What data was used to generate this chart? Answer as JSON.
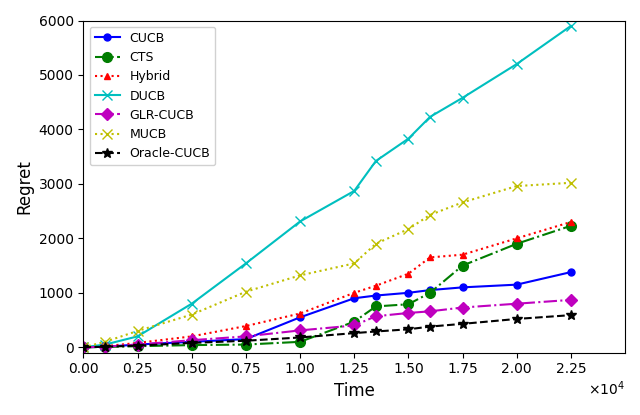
{
  "title": "",
  "xlabel": "Time",
  "ylabel": "Regret",
  "xlim": [
    0,
    25000
  ],
  "ylim": [
    -100,
    6000
  ],
  "xtick_values": [
    0,
    2500,
    5000,
    7500,
    10000,
    12500,
    15000,
    17500,
    20000,
    22500
  ],
  "xtick_labels": [
    "0.00",
    "0.25",
    "0.50",
    "0.75",
    "1.00",
    "1.25",
    "1.50",
    "1.75",
    "2.00",
    "2.25"
  ],
  "ytick_values": [
    0,
    1000,
    2000,
    3000,
    4000,
    5000,
    6000
  ],
  "time_points": [
    0,
    1000,
    2500,
    5000,
    7500,
    10000,
    12500,
    13500,
    15000,
    16000,
    17500,
    20000,
    22500
  ],
  "series": {
    "CUCB": {
      "color": "#0000ff",
      "linestyle": "-",
      "marker": "o",
      "markersize": 5,
      "linewidth": 1.5,
      "values": [
        0,
        10,
        50,
        100,
        150,
        550,
        900,
        950,
        1000,
        1050,
        1100,
        1150,
        1380
      ]
    },
    "CTS": {
      "color": "#007d00",
      "linestyle": "-.",
      "marker": "o",
      "markersize": 7,
      "linewidth": 1.5,
      "values": [
        0,
        5,
        20,
        40,
        50,
        100,
        470,
        750,
        790,
        1000,
        1500,
        1900,
        2230
      ]
    },
    "Hybrid": {
      "color": "#ff0000",
      "linestyle": ":",
      "marker": "^",
      "markersize": 5,
      "linewidth": 1.5,
      "values": [
        0,
        20,
        80,
        200,
        390,
        620,
        1000,
        1130,
        1350,
        1650,
        1700,
        2000,
        2300
      ]
    },
    "DUCB": {
      "color": "#00bfbf",
      "linestyle": "-",
      "marker": "x",
      "markersize": 7,
      "linewidth": 1.5,
      "values": [
        0,
        50,
        200,
        800,
        1540,
        2310,
        2870,
        3420,
        3830,
        4230,
        4580,
        5200,
        5900
      ]
    },
    "GLR-CUCB": {
      "color": "#bf00bf",
      "linestyle": "-.",
      "marker": "D",
      "markersize": 6,
      "linewidth": 1.5,
      "values": [
        0,
        10,
        50,
        130,
        200,
        310,
        400,
        570,
        630,
        660,
        730,
        800,
        870
      ]
    },
    "MUCB": {
      "color": "#bfbf00",
      "linestyle": ":",
      "marker": "x",
      "markersize": 7,
      "linewidth": 1.5,
      "values": [
        0,
        100,
        300,
        600,
        1020,
        1320,
        1540,
        1900,
        2170,
        2430,
        2660,
        2960,
        3020
      ]
    },
    "Oracle-CUCB": {
      "color": "#000000",
      "linestyle": "--",
      "marker": "*",
      "markersize": 7,
      "linewidth": 1.5,
      "values": [
        0,
        10,
        30,
        80,
        120,
        180,
        260,
        290,
        330,
        380,
        430,
        520,
        590
      ]
    }
  }
}
